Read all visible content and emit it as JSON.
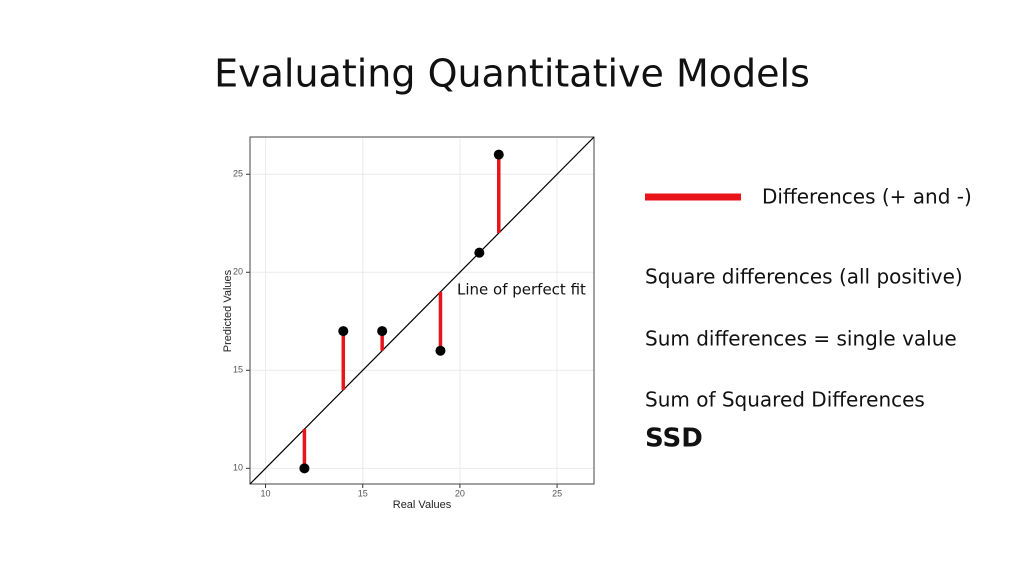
{
  "slide": {
    "title": "Evaluating Quantitative Models",
    "legend_text": "Differences (+ and -)",
    "lines": [
      "Square differences (all positive)",
      "Sum differences = single value",
      "Sum of Squared Differences"
    ],
    "emphasis": "SSD"
  },
  "chart_data": {
    "type": "scatter",
    "x_label": "Real Values",
    "y_label": "Predicted Values",
    "annotation": "Line of perfect fit",
    "x": [
      12,
      14,
      16,
      19,
      21,
      22
    ],
    "series": [
      {
        "name": "Differences (+ and -)",
        "color": "#e8141a",
        "values": [
          10,
          17,
          17,
          16,
          21,
          26
        ]
      }
    ],
    "point_color": "#000000",
    "xlim": [
      9.2,
      26.9
    ],
    "ylim": [
      9.2,
      26.9
    ],
    "xticks": [
      10,
      15,
      20,
      25
    ],
    "yticks": [
      10,
      15,
      20,
      25
    ],
    "grid": true
  }
}
